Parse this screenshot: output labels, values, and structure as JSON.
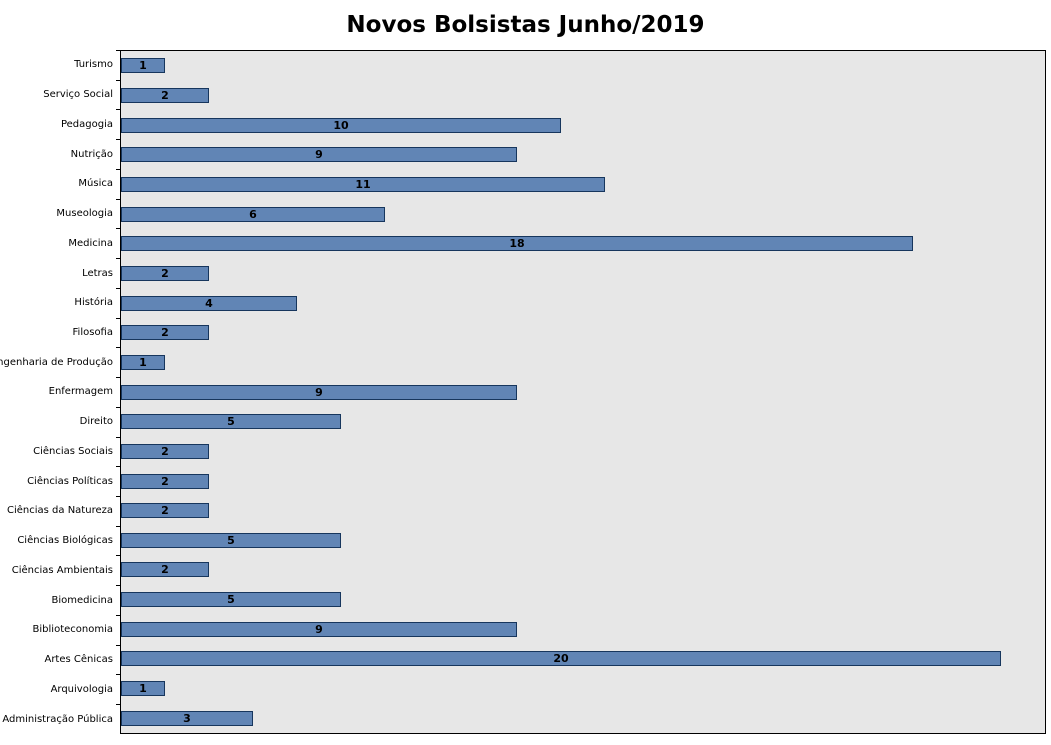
{
  "chart_data": {
    "type": "bar",
    "orientation": "horizontal",
    "title": "Novos Bolsistas Junho/2019",
    "categories": [
      "Turismo",
      "Serviço Social",
      "Pedagogia",
      "Nutrição",
      "Música",
      "Museologia",
      "Medicina",
      "Letras",
      "História",
      "Filosofia",
      "Engenharia de Produção",
      "Enfermagem",
      "Direito",
      "Ciências Sociais",
      "Ciências Políticas",
      "Ciências da Natureza",
      "Ciências Biológicas",
      "Ciências Ambientais",
      "Biomedicina",
      "Biblioteconomia",
      "Artes Cênicas",
      "Arquivologia",
      "Administração Pública"
    ],
    "values": [
      1,
      2,
      10,
      9,
      11,
      6,
      18,
      2,
      4,
      2,
      1,
      9,
      5,
      2,
      2,
      2,
      5,
      2,
      5,
      9,
      20,
      1,
      3
    ],
    "xlabel": "",
    "ylabel": "",
    "xlim": [
      0,
      21
    ],
    "grid": false,
    "legend": "none",
    "value_labels": "centered-inside-bars",
    "colors": {
      "bar_fill": "#6185b5",
      "bar_border": "#17365d",
      "plot_background": "#e7e7e7",
      "plot_border": "#000000",
      "title_text": "#000000",
      "label_text": "#000000",
      "page_background": "#ffffff"
    }
  }
}
